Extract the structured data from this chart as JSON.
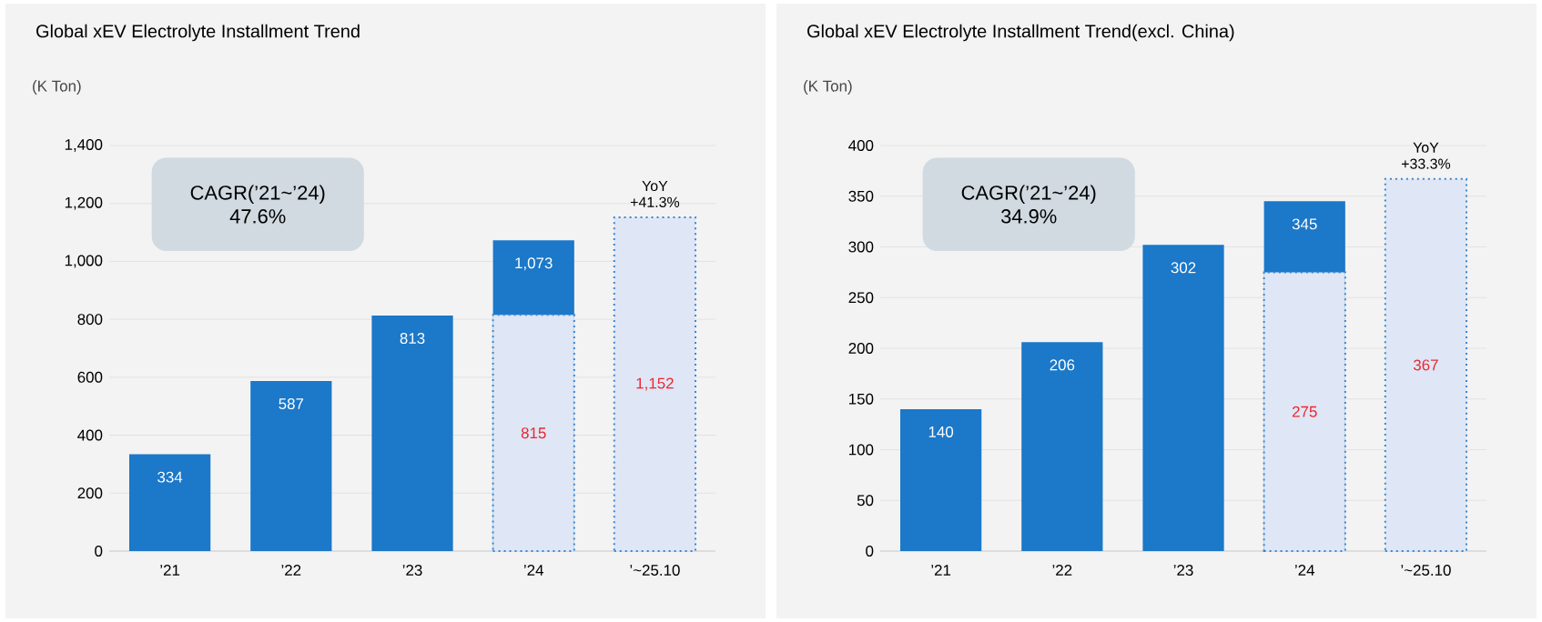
{
  "chart_data": [
    {
      "type": "bar",
      "title": "Global xEV Electrolyte Installment Trend",
      "ylabel": "(K Ton)",
      "categories": [
        "’21",
        "’22",
        "’23",
        "’24",
        "’~25.10"
      ],
      "series": [
        {
          "color": "#1c78c8",
          "values": [
            334,
            587,
            813,
            1073,
            null
          ],
          "value_labels": [
            "334",
            "587",
            "813",
            "1,073",
            null
          ]
        },
        {
          "color": "#dfe6f5",
          "line_style": "dotted",
          "values": [
            null,
            null,
            null,
            815,
            1152
          ],
          "value_labels": [
            null,
            null,
            null,
            "815",
            "1,152"
          ]
        }
      ],
      "ylim": [
        0,
        1400
      ],
      "yticks": [
        {
          "value": 0,
          "label": "0"
        },
        {
          "value": 200,
          "label": "200"
        },
        {
          "value": 400,
          "label": "400"
        },
        {
          "value": 600,
          "label": "600"
        },
        {
          "value": 800,
          "label": "800"
        },
        {
          "value": 1000,
          "label": "1,000"
        },
        {
          "value": 1200,
          "label": "1,200"
        },
        {
          "value": 1400,
          "label": "1,400"
        }
      ],
      "grid": "y",
      "annotations": [
        "CAGR(’21~’24) 47.6%",
        {
          "text": "YoY +41.3%",
          "x": "’~25.10",
          "y": 1152
        }
      ]
    },
    {
      "type": "bar",
      "title": "Global xEV Electrolyte Installment Trend(excl. China)",
      "ylabel": "(K Ton)",
      "categories": [
        "’21",
        "’22",
        "’23",
        "’24",
        "’~25.10"
      ],
      "series": [
        {
          "color": "#1c78c8",
          "values": [
            140,
            206,
            302,
            345,
            null
          ],
          "value_labels": [
            "140",
            "206",
            "302",
            "345",
            null
          ]
        },
        {
          "color": "#dfe6f5",
          "line_style": "dotted",
          "values": [
            null,
            null,
            null,
            275,
            367
          ],
          "value_labels": [
            null,
            null,
            null,
            "275",
            "367"
          ]
        }
      ],
      "ylim": [
        0,
        400
      ],
      "yticks": [
        0,
        50,
        100,
        150,
        200,
        250,
        300,
        350,
        400
      ],
      "grid": "y",
      "annotations": [
        "CAGR(’21~’24) 34.9%",
        {
          "text": "YoY +33.3%",
          "x": "’~25.10",
          "y": 367
        }
      ]
    }
  ]
}
